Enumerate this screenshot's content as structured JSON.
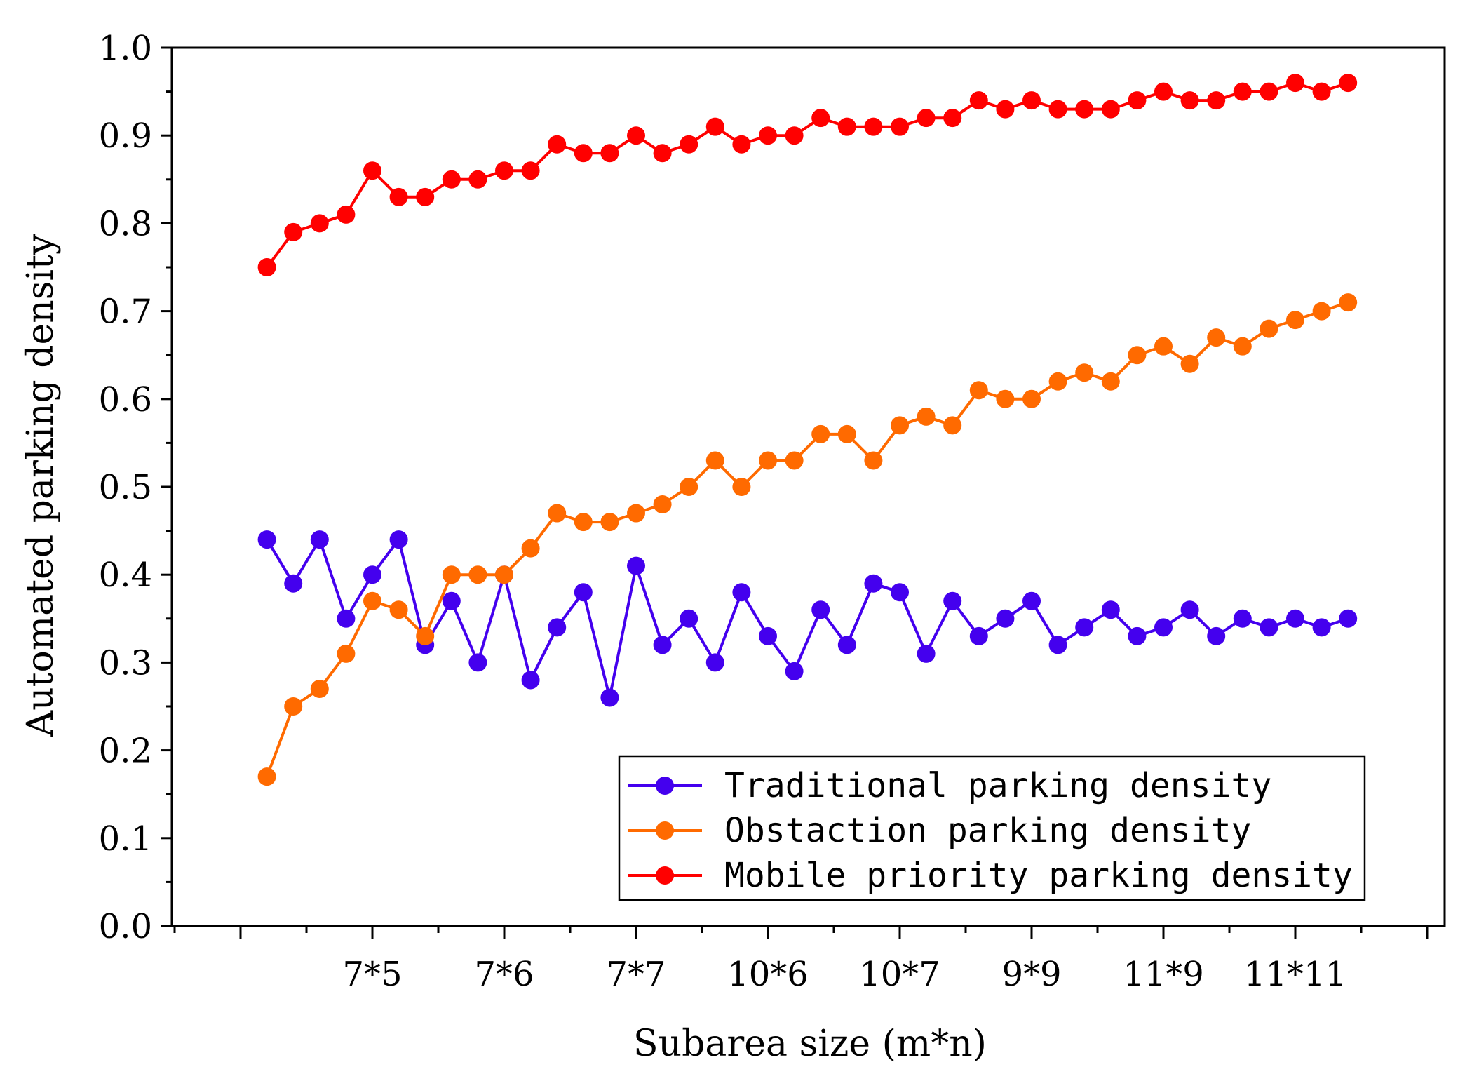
{
  "chart_data": {
    "type": "line",
    "title": "",
    "xlabel": "Subarea size (m*n)",
    "ylabel": "Automated parking density",
    "ylim": [
      0.0,
      1.0
    ],
    "yticks": [
      "0.0",
      "0.1",
      "0.2",
      "0.3",
      "0.4",
      "0.5",
      "0.6",
      "0.7",
      "0.8",
      "0.9",
      "1.0"
    ],
    "xlim": [
      -5,
      43
    ],
    "xticks_labeled": [
      {
        "x": 5,
        "label": "7*5"
      },
      {
        "x": 10,
        "label": "7*6"
      },
      {
        "x": 15,
        "label": "7*7"
      },
      {
        "x": 20,
        "label": "10*6"
      },
      {
        "x": 25,
        "label": "10*7"
      },
      {
        "x": 30,
        "label": "9*9"
      },
      {
        "x": 35,
        "label": "11*9"
      },
      {
        "x": 40,
        "label": "11*11"
      }
    ],
    "xticks_minor": [
      -5,
      0,
      45
    ],
    "x": [
      1,
      2,
      3,
      4,
      5,
      6,
      7,
      8,
      9,
      10,
      11,
      12,
      13,
      14,
      15,
      16,
      17,
      18,
      19,
      20,
      21,
      22,
      23,
      24,
      25,
      26,
      27,
      28,
      29,
      30,
      31,
      32,
      33,
      34,
      35,
      36,
      37,
      38,
      39,
      40,
      41,
      42
    ],
    "series": [
      {
        "name": "Traditional parking density",
        "color": "#4400ee",
        "values": [
          0.44,
          0.39,
          0.44,
          0.35,
          0.4,
          0.44,
          0.32,
          0.37,
          0.3,
          0.4,
          0.28,
          0.34,
          0.38,
          0.26,
          0.41,
          0.32,
          0.35,
          0.3,
          0.38,
          0.33,
          0.29,
          0.36,
          0.32,
          0.39,
          0.38,
          0.31,
          0.37,
          0.33,
          0.35,
          0.37,
          0.32,
          0.34,
          0.36,
          0.33,
          0.34,
          0.36,
          0.33,
          0.35,
          0.34,
          0.35,
          0.34,
          0.35
        ]
      },
      {
        "name": "Obstaction parking density",
        "color": "#ff6a00",
        "values": [
          0.17,
          0.25,
          0.27,
          0.31,
          0.37,
          0.36,
          0.33,
          0.4,
          0.4,
          0.4,
          0.43,
          0.47,
          0.46,
          0.46,
          0.47,
          0.48,
          0.5,
          0.53,
          0.5,
          0.53,
          0.53,
          0.56,
          0.56,
          0.53,
          0.57,
          0.58,
          0.57,
          0.61,
          0.6,
          0.6,
          0.62,
          0.63,
          0.62,
          0.65,
          0.66,
          0.64,
          0.67,
          0.66,
          0.68,
          0.69,
          0.7,
          0.71
        ]
      },
      {
        "name": "Mobile priority parking density",
        "color": "#ff0000",
        "values": [
          0.75,
          0.79,
          0.8,
          0.81,
          0.86,
          0.83,
          0.83,
          0.85,
          0.85,
          0.86,
          0.86,
          0.89,
          0.88,
          0.88,
          0.9,
          0.88,
          0.89,
          0.91,
          0.89,
          0.9,
          0.9,
          0.92,
          0.91,
          0.91,
          0.91,
          0.92,
          0.92,
          0.94,
          0.93,
          0.94,
          0.93,
          0.93,
          0.93,
          0.94,
          0.95,
          0.94,
          0.94,
          0.95,
          0.95,
          0.96,
          0.95,
          0.96
        ]
      }
    ],
    "grid": false,
    "legend_position": "bottom-right"
  }
}
